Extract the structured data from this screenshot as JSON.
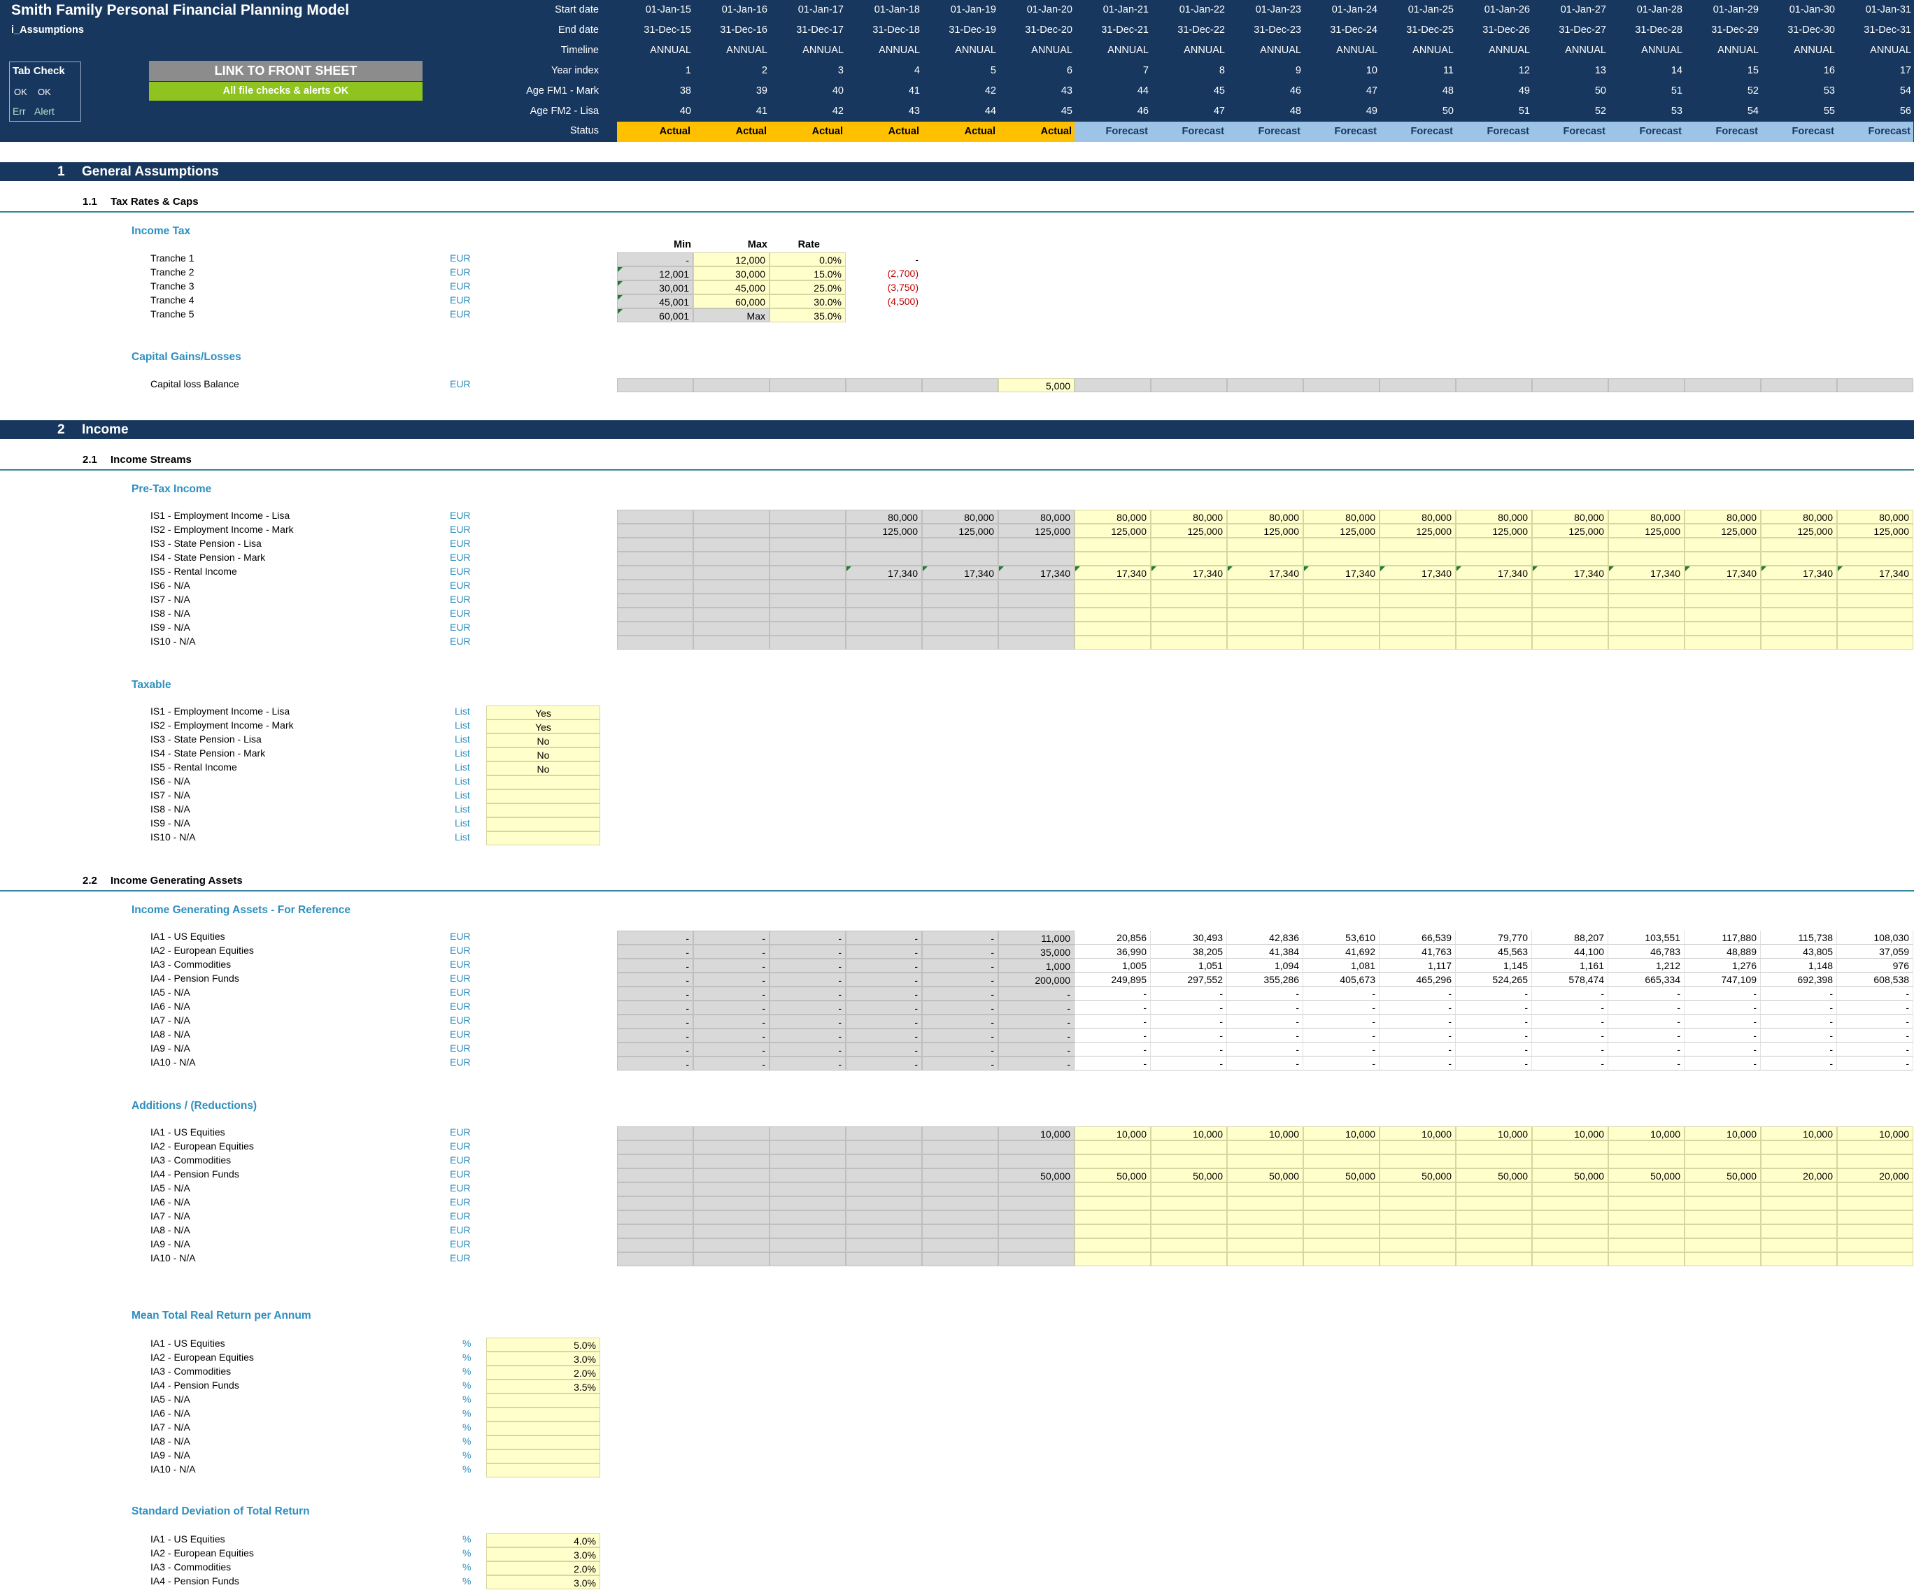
{
  "header": {
    "title": "Smith Family Personal Financial Planning Model",
    "sheet": "i_Assumptions",
    "tab_check": {
      "title": "Tab Check",
      "ok1": "OK",
      "ok2": "OK",
      "err": "Err",
      "alert": "Alert"
    },
    "link_button": "LINK TO FRONT SHEET",
    "checks_status": "All file checks & alerts OK",
    "row_labels": {
      "start": "Start date",
      "end": "End date",
      "timeline": "Timeline",
      "year_index": "Year index",
      "age1": "Age FM1 - Mark",
      "age2": "Age FM2 - Lisa",
      "status": "Status"
    },
    "start_dates": [
      "01-Jan-15",
      "01-Jan-16",
      "01-Jan-17",
      "01-Jan-18",
      "01-Jan-19",
      "01-Jan-20",
      "01-Jan-21",
      "01-Jan-22",
      "01-Jan-23",
      "01-Jan-24",
      "01-Jan-25",
      "01-Jan-26",
      "01-Jan-27",
      "01-Jan-28",
      "01-Jan-29",
      "01-Jan-30",
      "01-Jan-31"
    ],
    "end_dates": [
      "31-Dec-15",
      "31-Dec-16",
      "31-Dec-17",
      "31-Dec-18",
      "31-Dec-19",
      "31-Dec-20",
      "31-Dec-21",
      "31-Dec-22",
      "31-Dec-23",
      "31-Dec-24",
      "31-Dec-25",
      "31-Dec-26",
      "31-Dec-27",
      "31-Dec-28",
      "31-Dec-29",
      "31-Dec-30",
      "31-Dec-31"
    ],
    "timeline": [
      "ANNUAL",
      "ANNUAL",
      "ANNUAL",
      "ANNUAL",
      "ANNUAL",
      "ANNUAL",
      "ANNUAL",
      "ANNUAL",
      "ANNUAL",
      "ANNUAL",
      "ANNUAL",
      "ANNUAL",
      "ANNUAL",
      "ANNUAL",
      "ANNUAL",
      "ANNUAL",
      "ANNUAL"
    ],
    "year_index": [
      "1",
      "2",
      "3",
      "4",
      "5",
      "6",
      "7",
      "8",
      "9",
      "10",
      "11",
      "12",
      "13",
      "14",
      "15",
      "16",
      "17"
    ],
    "age_mark": [
      "38",
      "39",
      "40",
      "41",
      "42",
      "43",
      "44",
      "45",
      "46",
      "47",
      "48",
      "49",
      "50",
      "51",
      "52",
      "53",
      "54"
    ],
    "age_lisa": [
      "40",
      "41",
      "42",
      "43",
      "44",
      "45",
      "46",
      "47",
      "48",
      "49",
      "50",
      "51",
      "52",
      "53",
      "54",
      "55",
      "56"
    ],
    "status": [
      "Actual",
      "Actual",
      "Actual",
      "Actual",
      "Actual",
      "Actual",
      "Forecast",
      "Forecast",
      "Forecast",
      "Forecast",
      "Forecast",
      "Forecast",
      "Forecast",
      "Forecast",
      "Forecast",
      "Forecast",
      "Forecast"
    ]
  },
  "sections": {
    "s1": {
      "num": "1",
      "title": "General Assumptions"
    },
    "s1_1": {
      "num": "1.1",
      "title": "Tax Rates & Caps"
    },
    "s2": {
      "num": "2",
      "title": "Income"
    },
    "s2_1": {
      "num": "2.1",
      "title": "Income Streams"
    },
    "s2_2": {
      "num": "2.2",
      "title": "Income Generating Assets"
    }
  },
  "income_tax": {
    "group": "Income Tax",
    "col_min": "Min",
    "col_max": "Max",
    "col_rate": "Rate",
    "rows": [
      {
        "label": "Tranche 1",
        "unit": "EUR",
        "min": "-",
        "max": "12,000",
        "rate": "0.0%",
        "adj": "-"
      },
      {
        "label": "Tranche 2",
        "unit": "EUR",
        "min": "12,001",
        "max": "30,000",
        "rate": "15.0%",
        "adj": "(2,700)"
      },
      {
        "label": "Tranche 3",
        "unit": "EUR",
        "min": "30,001",
        "max": "45,000",
        "rate": "25.0%",
        "adj": "(3,750)"
      },
      {
        "label": "Tranche 4",
        "unit": "EUR",
        "min": "45,001",
        "max": "60,000",
        "rate": "30.0%",
        "adj": "(4,500)"
      },
      {
        "label": "Tranche 5",
        "unit": "EUR",
        "min": "60,001",
        "max": "Max",
        "rate": "35.0%",
        "adj": ""
      }
    ]
  },
  "capital_gains": {
    "group": "Capital Gains/Losses",
    "label": "Capital loss Balance",
    "unit": "EUR",
    "value": "5,000"
  },
  "pretax": {
    "group": "Pre-Tax Income",
    "rows": [
      {
        "label": "IS1 - Employment Income - Lisa",
        "unit": "EUR",
        "values": [
          "",
          "",
          "",
          "80,000",
          "80,000",
          "80,000",
          "80,000",
          "80,000",
          "80,000",
          "80,000",
          "80,000",
          "80,000",
          "80,000",
          "80,000",
          "80,000",
          "80,000",
          "80,000"
        ]
      },
      {
        "label": "IS2 - Employment Income - Mark",
        "unit": "EUR",
        "values": [
          "",
          "",
          "",
          "125,000",
          "125,000",
          "125,000",
          "125,000",
          "125,000",
          "125,000",
          "125,000",
          "125,000",
          "125,000",
          "125,000",
          "125,000",
          "125,000",
          "125,000",
          "125,000"
        ]
      },
      {
        "label": "IS3 - State Pension - Lisa",
        "unit": "EUR",
        "values": []
      },
      {
        "label": "IS4 - State Pension - Mark",
        "unit": "EUR",
        "values": []
      },
      {
        "label": "IS5 - Rental Income",
        "unit": "EUR",
        "values": [
          "",
          "",
          "",
          "17,340",
          "17,340",
          "17,340",
          "17,340",
          "17,340",
          "17,340",
          "17,340",
          "17,340",
          "17,340",
          "17,340",
          "17,340",
          "17,340",
          "17,340",
          "17,340"
        ]
      },
      {
        "label": "IS6 - N/A",
        "unit": "EUR",
        "values": []
      },
      {
        "label": "IS7 - N/A",
        "unit": "EUR",
        "values": []
      },
      {
        "label": "IS8 - N/A",
        "unit": "EUR",
        "values": []
      },
      {
        "label": "IS9 - N/A",
        "unit": "EUR",
        "values": []
      },
      {
        "label": "IS10 - N/A",
        "unit": "EUR",
        "values": []
      }
    ]
  },
  "taxable": {
    "group": "Taxable",
    "rows": [
      {
        "label": "IS1 - Employment Income - Lisa",
        "unit": "List",
        "value": "Yes"
      },
      {
        "label": "IS2 - Employment Income - Mark",
        "unit": "List",
        "value": "Yes"
      },
      {
        "label": "IS3 - State Pension - Lisa",
        "unit": "List",
        "value": "No"
      },
      {
        "label": "IS4 - State Pension - Mark",
        "unit": "List",
        "value": "No"
      },
      {
        "label": "IS5 - Rental Income",
        "unit": "List",
        "value": "No"
      },
      {
        "label": "IS6 - N/A",
        "unit": "List",
        "value": ""
      },
      {
        "label": "IS7 - N/A",
        "unit": "List",
        "value": ""
      },
      {
        "label": "IS8 - N/A",
        "unit": "List",
        "value": ""
      },
      {
        "label": "IS9 - N/A",
        "unit": "List",
        "value": ""
      },
      {
        "label": "IS10 - N/A",
        "unit": "List",
        "value": ""
      }
    ]
  },
  "assets_ref": {
    "group": "Income Generating Assets - For Reference",
    "rows": [
      {
        "label": "IA1 - US Equities",
        "unit": "EUR",
        "values": [
          "-",
          "-",
          "-",
          "-",
          "-",
          "11,000",
          "20,856",
          "30,493",
          "42,836",
          "53,610",
          "66,539",
          "79,770",
          "88,207",
          "103,551",
          "117,880",
          "115,738",
          "108,030"
        ]
      },
      {
        "label": "IA2 - European Equities",
        "unit": "EUR",
        "values": [
          "-",
          "-",
          "-",
          "-",
          "-",
          "35,000",
          "36,990",
          "38,205",
          "41,384",
          "41,692",
          "41,763",
          "45,563",
          "44,100",
          "46,783",
          "48,889",
          "43,805",
          "37,059"
        ]
      },
      {
        "label": "IA3 - Commodities",
        "unit": "EUR",
        "values": [
          "-",
          "-",
          "-",
          "-",
          "-",
          "1,000",
          "1,005",
          "1,051",
          "1,094",
          "1,081",
          "1,117",
          "1,145",
          "1,161",
          "1,212",
          "1,276",
          "1,148",
          "976"
        ]
      },
      {
        "label": "IA4 - Pension Funds",
        "unit": "EUR",
        "values": [
          "-",
          "-",
          "-",
          "-",
          "-",
          "200,000",
          "249,895",
          "297,552",
          "355,286",
          "405,673",
          "465,296",
          "524,265",
          "578,474",
          "665,334",
          "747,109",
          "692,398",
          "608,538"
        ]
      },
      {
        "label": "IA5 - N/A",
        "unit": "EUR",
        "values": [
          "-",
          "-",
          "-",
          "-",
          "-",
          "-",
          "-",
          "-",
          "-",
          "-",
          "-",
          "-",
          "-",
          "-",
          "-",
          "-",
          "-"
        ]
      },
      {
        "label": "IA6 - N/A",
        "unit": "EUR",
        "values": [
          "-",
          "-",
          "-",
          "-",
          "-",
          "-",
          "-",
          "-",
          "-",
          "-",
          "-",
          "-",
          "-",
          "-",
          "-",
          "-",
          "-"
        ]
      },
      {
        "label": "IA7 - N/A",
        "unit": "EUR",
        "values": [
          "-",
          "-",
          "-",
          "-",
          "-",
          "-",
          "-",
          "-",
          "-",
          "-",
          "-",
          "-",
          "-",
          "-",
          "-",
          "-",
          "-"
        ]
      },
      {
        "label": "IA8 - N/A",
        "unit": "EUR",
        "values": [
          "-",
          "-",
          "-",
          "-",
          "-",
          "-",
          "-",
          "-",
          "-",
          "-",
          "-",
          "-",
          "-",
          "-",
          "-",
          "-",
          "-"
        ]
      },
      {
        "label": "IA9 - N/A",
        "unit": "EUR",
        "values": [
          "-",
          "-",
          "-",
          "-",
          "-",
          "-",
          "-",
          "-",
          "-",
          "-",
          "-",
          "-",
          "-",
          "-",
          "-",
          "-",
          "-"
        ]
      },
      {
        "label": "IA10 - N/A",
        "unit": "EUR",
        "values": [
          "-",
          "-",
          "-",
          "-",
          "-",
          "-",
          "-",
          "-",
          "-",
          "-",
          "-",
          "-",
          "-",
          "-",
          "-",
          "-",
          "-"
        ]
      }
    ]
  },
  "additions": {
    "group": "Additions / (Reductions)",
    "rows": [
      {
        "label": "IA1 - US Equities",
        "unit": "EUR",
        "values": [
          "",
          "",
          "",
          "",
          "",
          "10,000",
          "10,000",
          "10,000",
          "10,000",
          "10,000",
          "10,000",
          "10,000",
          "10,000",
          "10,000",
          "10,000",
          "10,000",
          "10,000"
        ]
      },
      {
        "label": "IA2 - European Equities",
        "unit": "EUR",
        "values": []
      },
      {
        "label": "IA3 - Commodities",
        "unit": "EUR",
        "values": []
      },
      {
        "label": "IA4 - Pension Funds",
        "unit": "EUR",
        "values": [
          "",
          "",
          "",
          "",
          "",
          "50,000",
          "50,000",
          "50,000",
          "50,000",
          "50,000",
          "50,000",
          "50,000",
          "50,000",
          "50,000",
          "50,000",
          "20,000",
          "20,000"
        ]
      },
      {
        "label": "IA5 - N/A",
        "unit": "EUR",
        "values": []
      },
      {
        "label": "IA6 - N/A",
        "unit": "EUR",
        "values": []
      },
      {
        "label": "IA7 - N/A",
        "unit": "EUR",
        "values": []
      },
      {
        "label": "IA8 - N/A",
        "unit": "EUR",
        "values": []
      },
      {
        "label": "IA9 - N/A",
        "unit": "EUR",
        "values": []
      },
      {
        "label": "IA10 - N/A",
        "unit": "EUR",
        "values": []
      }
    ]
  },
  "mean_return": {
    "group": "Mean Total Real Return per Annum",
    "rows": [
      {
        "label": "IA1 - US Equities",
        "unit": "%",
        "value": "5.0%"
      },
      {
        "label": "IA2 - European Equities",
        "unit": "%",
        "value": "3.0%"
      },
      {
        "label": "IA3 - Commodities",
        "unit": "%",
        "value": "2.0%"
      },
      {
        "label": "IA4 - Pension Funds",
        "unit": "%",
        "value": "3.5%"
      },
      {
        "label": "IA5 - N/A",
        "unit": "%",
        "value": ""
      },
      {
        "label": "IA6 - N/A",
        "unit": "%",
        "value": ""
      },
      {
        "label": "IA7 - N/A",
        "unit": "%",
        "value": ""
      },
      {
        "label": "IA8 - N/A",
        "unit": "%",
        "value": ""
      },
      {
        "label": "IA9 - N/A",
        "unit": "%",
        "value": ""
      },
      {
        "label": "IA10 - N/A",
        "unit": "%",
        "value": ""
      }
    ]
  },
  "std_dev": {
    "group": "Standard Deviation of Total Return",
    "rows": [
      {
        "label": "IA1 - US Equities",
        "unit": "%",
        "value": "4.0%"
      },
      {
        "label": "IA2 - European Equities",
        "unit": "%",
        "value": "3.0%"
      },
      {
        "label": "IA3 - Commodities",
        "unit": "%",
        "value": "2.0%"
      },
      {
        "label": "IA4 - Pension Funds",
        "unit": "%",
        "value": "3.0%"
      }
    ]
  },
  "colors": {
    "header_navy": "#17375e",
    "accent_blue": "#2e8fbf",
    "input_yellow": "#ffffcc",
    "actual_orange": "#ffc000",
    "forecast_blue": "#9dc3e6",
    "ok_green": "#8fc31f"
  }
}
